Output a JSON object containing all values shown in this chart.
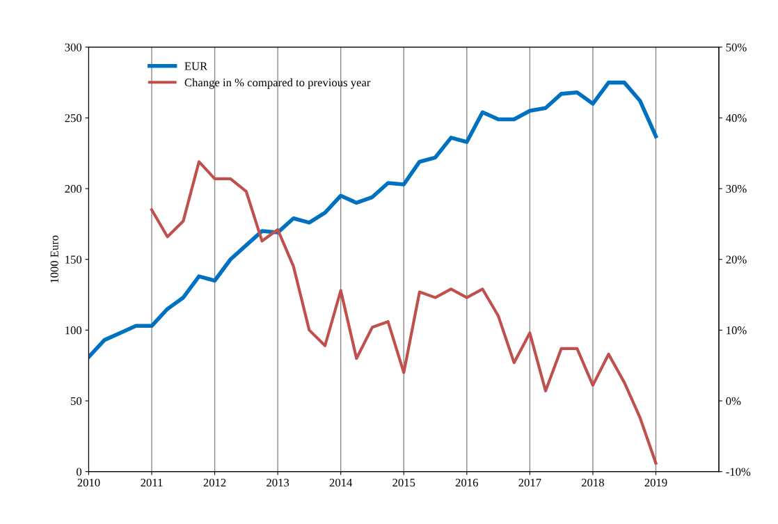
{
  "chart_data": {
    "type": "line",
    "ylabel": "1000 Euro",
    "xlim": [
      2010,
      2020
    ],
    "xticks": [
      2010,
      2011,
      2012,
      2013,
      2014,
      2015,
      2016,
      2017,
      2018,
      2019
    ],
    "ylim": [
      0,
      300
    ],
    "yticks": [
      0,
      50,
      100,
      150,
      200,
      250,
      300
    ],
    "y2lim": [
      -10,
      50
    ],
    "y2ticks": [
      {
        "value": -10,
        "label": "-10%"
      },
      {
        "value": 0,
        "label": "0%"
      },
      {
        "value": 10,
        "label": "10%"
      },
      {
        "value": 20,
        "label": "20%"
      },
      {
        "value": 30,
        "label": "30%"
      },
      {
        "value": 40,
        "label": "40%"
      },
      {
        "value": 50,
        "label": "50%"
      }
    ],
    "grid": "x",
    "legend": "top left",
    "marker": "none",
    "line_style": "solid",
    "series": [
      {
        "name": "EUR",
        "color": "#0070c0",
        "x": [
          2010,
          2010.25,
          2010.5,
          2010.75,
          2011,
          2011.25,
          2011.5,
          2011.75,
          2012,
          2012.25,
          2012.5,
          2012.75,
          2013,
          2013.25,
          2013.5,
          2013.75,
          2014,
          2014.25,
          2014.5,
          2014.75,
          2015,
          2015.25,
          2015.5,
          2015.75,
          2016,
          2016.25,
          2016.5,
          2016.75,
          2017,
          2017.25,
          2017.5,
          2017.75,
          2018,
          2018.25,
          2018.5,
          2018.75,
          2019
        ],
        "values": [
          81,
          93,
          98,
          103,
          103,
          115,
          123,
          138,
          135,
          150,
          160,
          170,
          169,
          179,
          176,
          183,
          195,
          190,
          194,
          204,
          203,
          219,
          222,
          236,
          233,
          254,
          249,
          249,
          255,
          257,
          267,
          268,
          260,
          275,
          275,
          262,
          237
        ]
      },
      {
        "name": "Change in % compared to previous year",
        "color": "#c0504d",
        "axis": "y2",
        "x": [
          2011,
          2011.25,
          2011.5,
          2011.75,
          2012,
          2012.25,
          2012.5,
          2012.75,
          2013,
          2013.25,
          2013.5,
          2013.75,
          2014,
          2014.25,
          2014.5,
          2014.75,
          2015,
          2015.25,
          2015.5,
          2015.75,
          2016,
          2016.25,
          2016.5,
          2016.75,
          2017,
          2017.25,
          2017.5,
          2017.75,
          2018,
          2018.25,
          2018.5,
          2018.75,
          2019
        ],
        "values": [
          27,
          23.2,
          25.4,
          33.8,
          31.4,
          31.4,
          29.6,
          22.6,
          24.2,
          19,
          10,
          7.8,
          15.6,
          6,
          10.4,
          11.2,
          4,
          15.4,
          14.6,
          15.8,
          14.6,
          15.8,
          12,
          5.4,
          9.6,
          1.4,
          7.4,
          7.4,
          2.2,
          6.6,
          2.6,
          -2.4,
          -8.8
        ]
      }
    ]
  }
}
